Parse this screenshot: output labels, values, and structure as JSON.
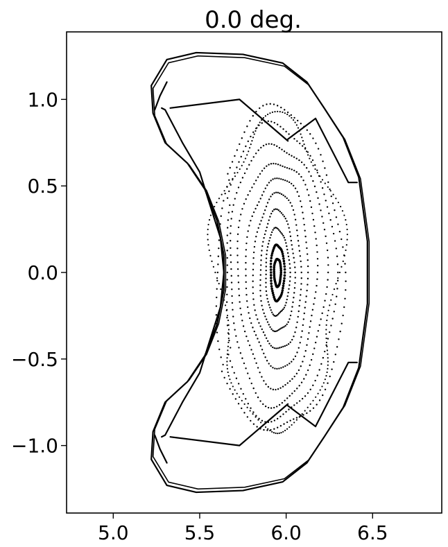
{
  "chart_data": {
    "type": "scatter",
    "title": "0.0 deg.",
    "xlabel": "",
    "ylabel": "",
    "xlim": [
      4.73,
      6.9
    ],
    "ylim": [
      -1.39,
      1.39
    ],
    "grid": false,
    "legend": "none",
    "x_ticks": [
      5.0,
      5.5,
      6.0,
      6.5
    ],
    "x_tick_labels": [
      "5.0",
      "5.5",
      "6.0",
      "6.5"
    ],
    "y_ticks": [
      1.0,
      0.5,
      0.0,
      -0.5,
      -1.0
    ],
    "y_tick_labels": [
      "1.0",
      "0.5",
      "0.0",
      "−0.5",
      "−1.0"
    ],
    "series": [
      {
        "kind": "poincare-orbits",
        "color": "#000000",
        "axis_center": [
          5.95,
          0.0
        ],
        "surfaces": [
          {
            "a": 0.02,
            "b": 0.08,
            "count": 45
          },
          {
            "a": 0.04,
            "b": 0.16,
            "count": 60
          },
          {
            "a": 0.07,
            "b": 0.25,
            "count": 65
          },
          {
            "a": 0.1,
            "b": 0.35,
            "count": 75
          },
          {
            "a": 0.14,
            "b": 0.45,
            "count": 85
          },
          {
            "a": 0.18,
            "b": 0.55,
            "count": 95
          },
          {
            "a": 0.23,
            "b": 0.65,
            "count": 105
          },
          {
            "a": 0.28,
            "b": 0.75,
            "count": 115
          },
          {
            "a": 0.33,
            "b": 0.85,
            "count": 120
          },
          {
            "a": 0.38,
            "b": 0.93,
            "count": 120
          }
        ]
      }
    ],
    "outlines": [
      {
        "name": "outer-boundary",
        "points": [
          [
            5.31,
            1.23
          ],
          [
            5.48,
            1.27
          ],
          [
            5.75,
            1.26
          ],
          [
            5.98,
            1.21
          ],
          [
            6.12,
            1.1
          ],
          [
            6.22,
            0.95
          ],
          [
            6.33,
            0.78
          ],
          [
            6.42,
            0.55
          ],
          [
            6.47,
            0.18
          ],
          [
            6.47,
            -0.18
          ],
          [
            6.42,
            -0.55
          ],
          [
            6.33,
            -0.78
          ],
          [
            6.22,
            -0.95
          ],
          [
            6.12,
            -1.1
          ],
          [
            5.98,
            -1.21
          ],
          [
            5.75,
            -1.26
          ],
          [
            5.48,
            -1.27
          ],
          [
            5.31,
            -1.23
          ],
          [
            5.22,
            -1.08
          ],
          [
            5.23,
            -0.92
          ],
          [
            5.3,
            -0.75
          ],
          [
            5.43,
            -0.63
          ],
          [
            5.53,
            -0.48
          ],
          [
            5.6,
            -0.3
          ],
          [
            5.64,
            -0.1
          ],
          [
            5.64,
            0.1
          ],
          [
            5.6,
            0.3
          ],
          [
            5.53,
            0.48
          ],
          [
            5.43,
            0.63
          ],
          [
            5.3,
            0.75
          ],
          [
            5.23,
            0.92
          ],
          [
            5.22,
            1.08
          ],
          [
            5.31,
            1.23
          ]
        ]
      },
      {
        "name": "upper-divertor-plate",
        "points": [
          [
            5.28,
            0.95
          ],
          [
            5.3,
            0.94
          ],
          [
            5.4,
            0.75
          ],
          [
            5.5,
            0.58
          ],
          [
            5.55,
            0.42
          ],
          [
            5.62,
            0.2
          ],
          [
            5.64,
            0.0
          ],
          [
            5.62,
            -0.2
          ],
          [
            5.55,
            -0.42
          ],
          [
            5.5,
            -0.58
          ],
          [
            5.4,
            -0.75
          ],
          [
            5.3,
            -0.94
          ],
          [
            5.28,
            -0.95
          ]
        ]
      },
      {
        "name": "upper-baffle",
        "points": [
          [
            5.33,
            0.95
          ],
          [
            5.73,
            1.0
          ],
          [
            6.01,
            0.76
          ]
        ]
      },
      {
        "name": "lower-baffle",
        "points": [
          [
            5.33,
            -0.95
          ],
          [
            5.73,
            -1.0
          ],
          [
            6.01,
            -0.76
          ]
        ]
      },
      {
        "name": "upper-side-panel",
        "points": [
          [
            6.01,
            0.77
          ],
          [
            6.17,
            0.89
          ],
          [
            6.36,
            0.52
          ],
          [
            6.41,
            0.52
          ]
        ]
      },
      {
        "name": "lower-side-panel",
        "points": [
          [
            6.01,
            -0.77
          ],
          [
            6.17,
            -0.89
          ],
          [
            6.36,
            -0.52
          ],
          [
            6.41,
            -0.52
          ]
        ]
      },
      {
        "name": "upper-inner-target",
        "points": [
          [
            5.31,
            1.1
          ],
          [
            5.27,
            1.02
          ],
          [
            5.24,
            0.94
          ]
        ]
      },
      {
        "name": "lower-inner-target",
        "points": [
          [
            5.31,
            -1.1
          ],
          [
            5.27,
            -1.02
          ],
          [
            5.24,
            -0.94
          ]
        ]
      }
    ]
  }
}
